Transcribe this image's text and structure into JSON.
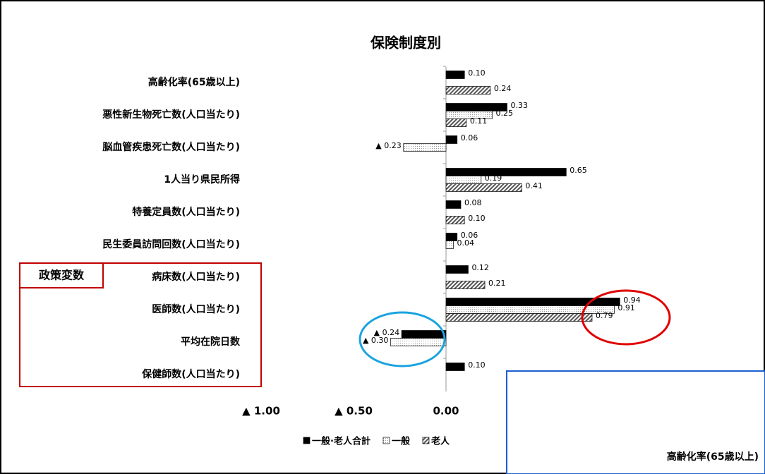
{
  "chart_data": {
    "type": "barh",
    "title": "保険制度別",
    "categories": [
      "高齢化率(65歳以上)",
      "悪性新生物死亡数(人口当たり)",
      "脳血管疾患死亡数(人口当たり)",
      "1人当り県民所得",
      "特養定員数(人口当たり)",
      "民生委員訪問回数(人口当たり)",
      "病床数(人口当たり)",
      "医師数(人口当たり)",
      "平均在院日数",
      "保健師数(人口当たり)"
    ],
    "series": [
      {
        "name": "一般·老人合計",
        "color": "#000000",
        "pattern": "solid",
        "values": [
          0.1,
          0.33,
          0.06,
          0.65,
          0.08,
          0.06,
          0.12,
          0.94,
          -0.24,
          0.1
        ],
        "value_labels": [
          "0.10",
          "0.33",
          "0.06",
          "0.65",
          "0.08",
          "0.06",
          "0.12",
          "0.94",
          "▲ 0.24",
          "0.10"
        ]
      },
      {
        "name": "一般",
        "color": "#9a9a9a",
        "pattern": "dots",
        "values": [
          null,
          0.25,
          -0.23,
          0.19,
          null,
          0.04,
          null,
          0.91,
          -0.3,
          null
        ],
        "value_labels": [
          null,
          "0.25",
          "▲ 0.23",
          "0.19",
          null,
          "0.04",
          null,
          "0.91",
          "▲ 0.30",
          null
        ]
      },
      {
        "name": "老人",
        "color": "#555555",
        "pattern": "hatch",
        "values": [
          0.24,
          0.11,
          null,
          0.41,
          0.1,
          null,
          0.21,
          0.79,
          null,
          null
        ],
        "value_labels": [
          "0.24",
          "0.11",
          null,
          "0.41",
          "0.10",
          null,
          "0.21",
          "0.79",
          null,
          null
        ]
      }
    ],
    "xlim": [
      -1.0,
      1.5
    ],
    "xticks": [
      {
        "value": -1.0,
        "label": "▲ 1.00"
      },
      {
        "value": -0.5,
        "label": "▲ 0.50"
      },
      {
        "value": 0.0,
        "label": "0.00"
      }
    ],
    "annotations": {
      "policy_box": "政策変数",
      "overlay_label": "高齢化率(65歳以上)"
    }
  }
}
